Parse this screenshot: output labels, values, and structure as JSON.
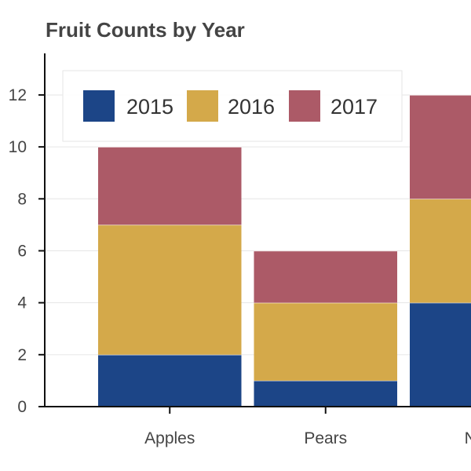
{
  "chart_data": {
    "type": "bar",
    "stacked": true,
    "title": "Fruit Counts by Year",
    "xlabel": "",
    "ylabel": "",
    "categories": [
      "Apples",
      "Pears",
      "Nectarines"
    ],
    "category_labels_visible": [
      "Apples",
      "Pears",
      "Nect"
    ],
    "series": [
      {
        "name": "2015",
        "color": "#1c4587",
        "values": [
          2,
          1,
          4
        ]
      },
      {
        "name": "2016",
        "color": "#d4a94a",
        "values": [
          5,
          3,
          4
        ]
      },
      {
        "name": "2017",
        "color": "#ac5a67",
        "values": [
          3,
          2,
          4
        ]
      }
    ],
    "ylim": [
      0,
      13.6
    ],
    "yticks": [
      0,
      2,
      4,
      6,
      8,
      10,
      12
    ],
    "grid": true,
    "legend": "top-left"
  }
}
